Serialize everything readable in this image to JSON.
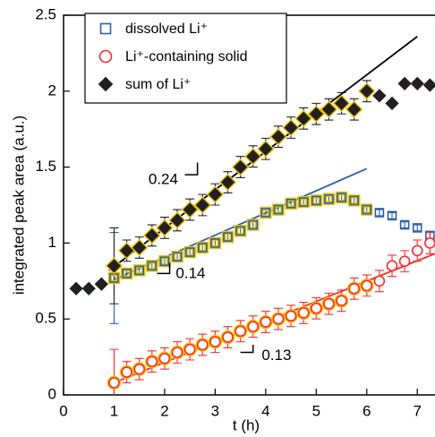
{
  "chart_data": {
    "type": "scatter",
    "x_label": "t (h)",
    "y_label": "integrated peak area (a.u.)",
    "xlim": [
      0,
      7.35
    ],
    "ylim": [
      0,
      2.5
    ],
    "xticks": [
      0,
      1,
      2,
      3,
      4,
      5,
      6,
      7
    ],
    "yticks": [
      0,
      0.5,
      1,
      1.5,
      2,
      2.5
    ],
    "series": [
      {
        "name": "dissolved Li⁺",
        "color": "#2b5fae",
        "marker": "square",
        "halo_color": "#e9c400",
        "x": [
          1,
          1.25,
          1.5,
          1.75,
          2,
          2.25,
          2.5,
          2.75,
          3,
          3.25,
          3.5,
          3.75,
          4,
          4.25,
          4.5,
          4.75,
          5,
          5.25,
          5.5,
          5.75,
          6,
          6.25,
          6.5,
          6.75,
          7,
          7.25
        ],
        "values": [
          0.77,
          0.8,
          0.82,
          0.85,
          0.88,
          0.91,
          0.94,
          0.97,
          1.0,
          1.04,
          1.08,
          1.12,
          1.2,
          1.22,
          1.26,
          1.27,
          1.28,
          1.29,
          1.3,
          1.28,
          1.22,
          1.2,
          1.18,
          1.12,
          1.1,
          1.05
        ],
        "errors": [
          0.3,
          0.02,
          0.02,
          0.02,
          0.02,
          0.02,
          0.02,
          0.02,
          0.02,
          0.02,
          0.02,
          0.02,
          0.02,
          0.02,
          0.02,
          0.02,
          0.02,
          0.02,
          0.02,
          0.02,
          0.02,
          0.02,
          0.02,
          0.02,
          0.02,
          0.02
        ]
      },
      {
        "name": "Li⁺-containing solid",
        "color": "#ff2a2a",
        "marker": "circle",
        "halo_color": "#f0c000",
        "x": [
          1,
          1.25,
          1.5,
          1.75,
          2,
          2.25,
          2.5,
          2.75,
          3,
          3.25,
          3.5,
          3.75,
          4,
          4.25,
          4.5,
          4.75,
          5,
          5.25,
          5.5,
          5.75,
          6,
          6.25,
          6.5,
          6.75,
          7,
          7.25
        ],
        "values": [
          0.08,
          0.15,
          0.17,
          0.22,
          0.24,
          0.28,
          0.3,
          0.33,
          0.35,
          0.38,
          0.42,
          0.45,
          0.48,
          0.5,
          0.52,
          0.54,
          0.57,
          0.6,
          0.62,
          0.7,
          0.72,
          0.75,
          0.85,
          0.88,
          0.95,
          1.0
        ],
        "errors": [
          0.22,
          0.07,
          0.07,
          0.07,
          0.07,
          0.07,
          0.07,
          0.07,
          0.07,
          0.07,
          0.07,
          0.07,
          0.07,
          0.07,
          0.07,
          0.07,
          0.07,
          0.07,
          0.07,
          0.07,
          0.07,
          0.07,
          0.07,
          0.07,
          0.07,
          0.07
        ]
      },
      {
        "name": "sum of Li⁺",
        "color": "#231f20",
        "marker": "diamond",
        "halo_color": "#e9c400",
        "x": [
          0.25,
          0.5,
          0.75,
          1,
          1.25,
          1.5,
          1.75,
          2,
          2.25,
          2.5,
          2.75,
          3,
          3.25,
          3.5,
          3.75,
          4,
          4.25,
          4.5,
          4.75,
          5,
          5.25,
          5.5,
          5.75,
          6,
          6.25,
          6.5,
          6.75,
          7,
          7.25
        ],
        "values": [
          0.7,
          0.7,
          0.73,
          0.85,
          0.95,
          0.97,
          1.05,
          1.1,
          1.15,
          1.22,
          1.25,
          1.32,
          1.4,
          1.5,
          1.57,
          1.62,
          1.7,
          1.76,
          1.82,
          1.85,
          1.88,
          1.92,
          1.88,
          2.0,
          1.97,
          1.92,
          2.05,
          2.05,
          2.04
        ],
        "errors": [
          0.01,
          0.01,
          0.01,
          0.25,
          0.07,
          0.07,
          0.07,
          0.07,
          0.07,
          0.07,
          0.07,
          0.07,
          0.07,
          0.07,
          0.07,
          0.07,
          0.07,
          0.07,
          0.07,
          0.07,
          0.07,
          0.07,
          0.07,
          0.07,
          0.01,
          0.01,
          0.01,
          0.01,
          0.01
        ]
      }
    ],
    "fit_lines": [
      {
        "color": "#000000",
        "x": [
          0.9,
          7.0
        ],
        "y": [
          0.82,
          2.36
        ]
      },
      {
        "color": "#2b5fae",
        "x": [
          1.0,
          6.0
        ],
        "y": [
          0.76,
          1.49
        ]
      },
      {
        "color": "#ff2a2a",
        "x": [
          1.0,
          7.35
        ],
        "y": [
          0.08,
          0.93
        ]
      }
    ],
    "annotations": [
      "0.24",
      "0.14",
      "0.13"
    ],
    "legend": "upper left"
  }
}
